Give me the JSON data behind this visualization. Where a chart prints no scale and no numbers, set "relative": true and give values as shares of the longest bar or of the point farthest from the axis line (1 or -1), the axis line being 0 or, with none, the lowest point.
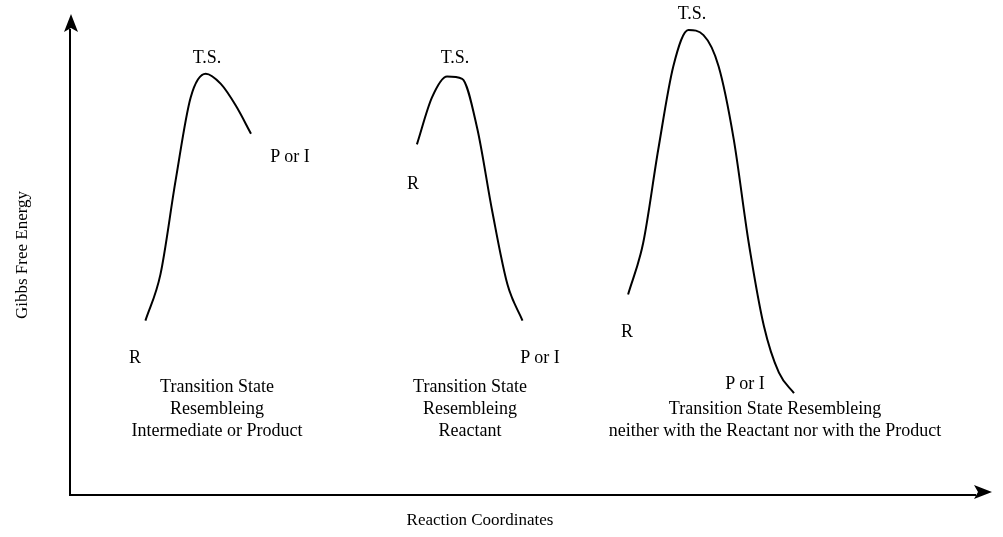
{
  "chart_data": {
    "type": "line",
    "relative": true,
    "xlabel": "Reaction Coordinates",
    "ylabel": "Gibbs Free Energy",
    "tick_labels": false,
    "marker": "none",
    "line_style": "solid",
    "legend": false,
    "categories": [
      null,
      null,
      null,
      null,
      null,
      null,
      null,
      null,
      null,
      null,
      null,
      null,
      null,
      null,
      null,
      null,
      null,
      null,
      null,
      null,
      null,
      null,
      null,
      null,
      null,
      null,
      null,
      null,
      null,
      null,
      null,
      null,
      null,
      null,
      null,
      null,
      null,
      null,
      null,
      null,
      null,
      null,
      null,
      null,
      null,
      null,
      null,
      null,
      null,
      null,
      null,
      null,
      null,
      null,
      null,
      null,
      null,
      null,
      null,
      null,
      null
    ],
    "series": [
      {
        "color": "#000000",
        "values": [
          null,
          null,
          null,
          null,
          null,
          0.375,
          0.475,
          0.676,
          0.855,
          0.906,
          0.884,
          0.837,
          0.777,
          null,
          null,
          null,
          null,
          null,
          null,
          null,
          null,
          null,
          null,
          null,
          null,
          null,
          null,
          null,
          null,
          null,
          null,
          null,
          null,
          null,
          null,
          null,
          null,
          null,
          null,
          null,
          null,
          null,
          null,
          null,
          null,
          null,
          null,
          null,
          null,
          null,
          null,
          null,
          null,
          null,
          null,
          null,
          null,
          null,
          null,
          null,
          null
        ]
      },
      {
        "color": "#000000",
        "values": [
          null,
          null,
          null,
          null,
          null,
          null,
          null,
          null,
          null,
          null,
          null,
          null,
          null,
          null,
          null,
          null,
          null,
          null,
          null,
          null,
          null,
          null,
          null,
          0.754,
          0.855,
          0.9,
          0.895,
          0.788,
          0.609,
          0.453,
          0.375,
          null,
          null,
          null,
          null,
          null,
          null,
          null,
          null,
          null,
          null,
          null,
          null,
          null,
          null,
          null,
          null,
          null,
          null,
          null,
          null,
          null,
          null,
          null,
          null,
          null,
          null,
          null,
          null,
          null,
          null
        ]
      },
      {
        "color": "#000000",
        "values": [
          null,
          null,
          null,
          null,
          null,
          null,
          null,
          null,
          null,
          null,
          null,
          null,
          null,
          null,
          null,
          null,
          null,
          null,
          null,
          null,
          null,
          null,
          null,
          null,
          null,
          null,
          null,
          null,
          null,
          null,
          null,
          null,
          null,
          null,
          null,
          null,
          null,
          0.431,
          0.542,
          0.743,
          0.922,
          1,
          0.989,
          0.922,
          0.766,
          0.542,
          0.364,
          0.263,
          0.219,
          null,
          null,
          null,
          null,
          null,
          null,
          null,
          null,
          null,
          null,
          null,
          null
        ]
      }
    ],
    "annotations": [
      "T.S.",
      "P or I",
      "R",
      "Transition State\nResembleing\nIntermediate or Product",
      "T.S.",
      "R",
      "P or I",
      "Transition State\nResembleing\nReactant",
      "T.S.",
      "R",
      "P or I",
      "Transition State Resembleing\nneither with the Reactant nor with the Product"
    ]
  }
}
